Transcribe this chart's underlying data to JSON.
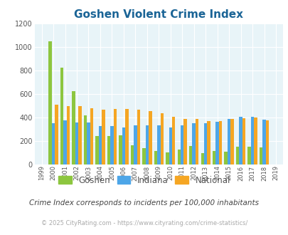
{
  "title": "Goshen Violent Crime Index",
  "years": [
    1999,
    2000,
    2001,
    2002,
    2003,
    2004,
    2005,
    2006,
    2007,
    2008,
    2009,
    2010,
    2011,
    2012,
    2013,
    2014,
    2015,
    2016,
    2017,
    2018,
    2019
  ],
  "goshen": [
    0,
    1050,
    825,
    625,
    420,
    245,
    245,
    250,
    165,
    140,
    115,
    105,
    125,
    155,
    100,
    115,
    110,
    150,
    150,
    145,
    0
  ],
  "indiana": [
    0,
    350,
    375,
    355,
    355,
    325,
    325,
    315,
    335,
    335,
    335,
    315,
    335,
    350,
    350,
    365,
    390,
    405,
    405,
    380,
    0
  ],
  "national": [
    0,
    510,
    500,
    495,
    480,
    465,
    470,
    470,
    465,
    455,
    435,
    405,
    390,
    385,
    370,
    370,
    385,
    395,
    400,
    375,
    0
  ],
  "goshen_color": "#8dc63f",
  "indiana_color": "#4da6e8",
  "national_color": "#f5a623",
  "bg_color": "#e8f4f8",
  "ylim": [
    0,
    1200
  ],
  "yticks": [
    0,
    200,
    400,
    600,
    800,
    1000,
    1200
  ],
  "subtitle": "Crime Index corresponds to incidents per 100,000 inhabitants",
  "footer": "© 2025 CityRating.com - https://www.cityrating.com/crime-statistics/",
  "bar_width": 0.27,
  "title_color": "#1a6496",
  "subtitle_color": "#444444",
  "footer_color": "#aaaaaa",
  "legend_label_color": "#555555",
  "legend_labels": [
    "Goshen",
    "Indiana",
    "National"
  ]
}
